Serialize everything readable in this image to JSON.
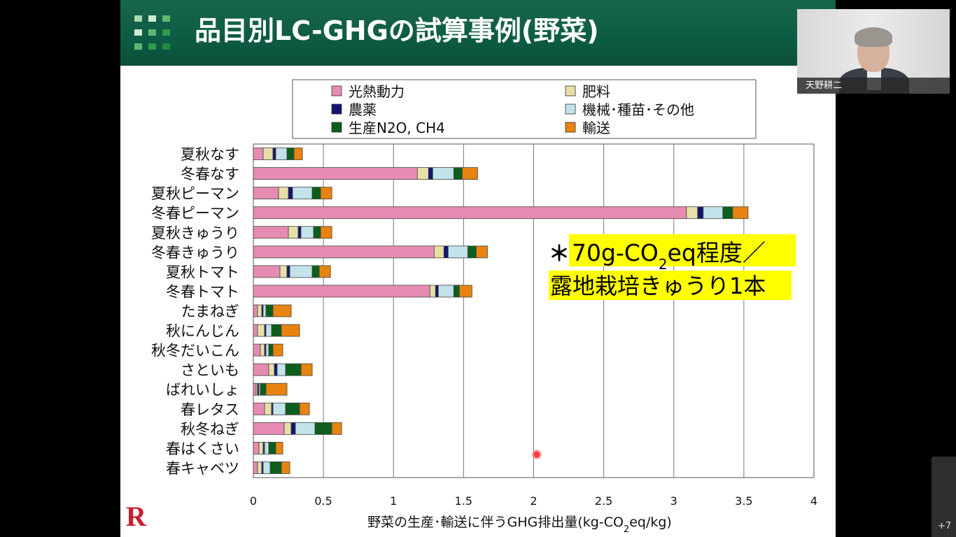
{
  "slide": {
    "title": "品目別LC-GHGの試算事例(野菜)",
    "logo_letter": "R"
  },
  "colors": {
    "title_bg": "#0d5b44",
    "highlight": "#ffff00",
    "laser": "#ff3a3a"
  },
  "legend": [
    {
      "name": "光熱動力",
      "color": "#e68cb3"
    },
    {
      "name": "肥料",
      "color": "#e6dfa8"
    },
    {
      "name": "農薬",
      "color": "#141470"
    },
    {
      "name": "機械･種苗･その他",
      "color": "#c2e3ea"
    },
    {
      "name": "生産N2O, CH4",
      "color": "#0d5e1c"
    },
    {
      "name": "輸送",
      "color": "#e8830f"
    }
  ],
  "annotation": {
    "asterisk": "＊",
    "line1_a": "70g-CO",
    "line1_sub": "2",
    "line1_b": "eq程度／",
    "line2": "露地栽培きゅうり1本"
  },
  "chart_data": {
    "type": "bar",
    "orientation": "horizontal",
    "stacked": true,
    "categories": [
      "夏秋なす",
      "冬春なす",
      "夏秋ピーマン",
      "冬春ピーマン",
      "夏秋きゅうり",
      "冬春きゅうり",
      "夏秋トマト",
      "冬春トマト",
      "たまねぎ",
      "秋にんじん",
      "秋冬だいこん",
      "さといも",
      "ばれいしょ",
      "春レタス",
      "秋冬ねぎ",
      "春はくさい",
      "春キャベツ"
    ],
    "series": [
      {
        "name": "光熱動力",
        "values": [
          0.07,
          1.17,
          0.18,
          3.09,
          0.25,
          1.29,
          0.19,
          1.26,
          0.03,
          0.03,
          0.05,
          0.11,
          0.02,
          0.08,
          0.22,
          0.04,
          0.03
        ]
      },
      {
        "name": "肥料",
        "values": [
          0.07,
          0.08,
          0.07,
          0.08,
          0.07,
          0.07,
          0.05,
          0.04,
          0.03,
          0.05,
          0.03,
          0.04,
          0.01,
          0.05,
          0.05,
          0.03,
          0.03
        ]
      },
      {
        "name": "農薬",
        "values": [
          0.02,
          0.03,
          0.03,
          0.04,
          0.02,
          0.03,
          0.02,
          0.02,
          0.01,
          0.01,
          0.01,
          0.02,
          0.01,
          0.01,
          0.03,
          0.01,
          0.01
        ]
      },
      {
        "name": "機械･種苗･その他",
        "values": [
          0.08,
          0.15,
          0.14,
          0.14,
          0.09,
          0.14,
          0.16,
          0.11,
          0.02,
          0.04,
          0.02,
          0.06,
          0.01,
          0.09,
          0.14,
          0.03,
          0.05
        ]
      },
      {
        "name": "生産N2O, CH4",
        "values": [
          0.05,
          0.06,
          0.06,
          0.07,
          0.05,
          0.06,
          0.05,
          0.04,
          0.05,
          0.07,
          0.03,
          0.11,
          0.04,
          0.1,
          0.12,
          0.05,
          0.08
        ]
      },
      {
        "name": "輸送",
        "values": [
          0.06,
          0.11,
          0.08,
          0.11,
          0.08,
          0.08,
          0.08,
          0.09,
          0.13,
          0.13,
          0.07,
          0.08,
          0.15,
          0.07,
          0.07,
          0.05,
          0.06
        ]
      }
    ],
    "xlim": [
      0,
      4
    ],
    "xticks": [
      "0",
      "0.5",
      "1",
      "1.5",
      "2",
      "2.5",
      "3",
      "3.5",
      "4"
    ],
    "xlabel_a": "野菜の生産･輸送に伴うGHG排出量(kg-CO",
    "xlabel_sub": "2",
    "xlabel_b": "eq/kg)",
    "grid": true,
    "legend_position": "top"
  },
  "webcam": {
    "name": "天野耕二"
  },
  "overflow_badge": "+7"
}
